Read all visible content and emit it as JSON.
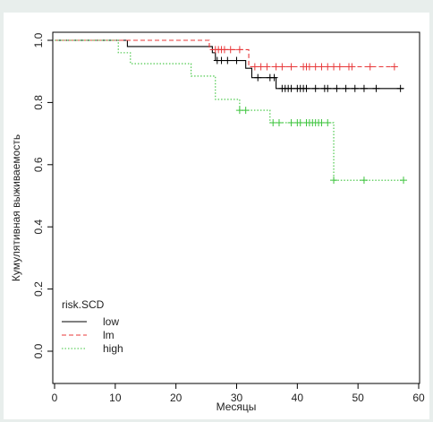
{
  "chart_data": {
    "type": "line",
    "subtype": "kaplan-meier step curves with censor marks",
    "xlabel": "Месяцы",
    "ylabel": "Кумулятивная выживаемость",
    "xlim": [
      0,
      60
    ],
    "ylim": [
      0,
      1
    ],
    "x_ticks": [
      "0",
      "10",
      "20",
      "30",
      "40",
      "50",
      "60"
    ],
    "y_ticks": [
      "0.0",
      "0.2",
      "0.4",
      "0.6",
      "0.8",
      "1.0"
    ],
    "grid": false,
    "legend": {
      "title": "risk.SCD",
      "position": "bottom-left"
    },
    "series": [
      {
        "name": "low",
        "color": "#000000",
        "line_style": "solid",
        "steps": [
          [
            0,
            1.0
          ],
          [
            12,
            0.98
          ],
          [
            26,
            0.96
          ],
          [
            26.5,
            0.935
          ],
          [
            31.5,
            0.91
          ],
          [
            32.5,
            0.88
          ],
          [
            36.5,
            0.845
          ],
          [
            57.5,
            0.845
          ]
        ],
        "censored": [
          [
            26.8,
            0.935
          ],
          [
            27.5,
            0.935
          ],
          [
            28.5,
            0.935
          ],
          [
            30,
            0.935
          ],
          [
            33.5,
            0.88
          ],
          [
            35.5,
            0.88
          ],
          [
            36.2,
            0.88
          ],
          [
            37.5,
            0.845
          ],
          [
            38,
            0.845
          ],
          [
            38.5,
            0.845
          ],
          [
            39,
            0.845
          ],
          [
            40,
            0.845
          ],
          [
            40.5,
            0.845
          ],
          [
            41,
            0.845
          ],
          [
            41.5,
            0.845
          ],
          [
            43,
            0.845
          ],
          [
            44.5,
            0.845
          ],
          [
            45,
            0.845
          ],
          [
            46.5,
            0.845
          ],
          [
            48,
            0.845
          ],
          [
            49.5,
            0.845
          ],
          [
            51,
            0.845
          ],
          [
            53,
            0.845
          ],
          [
            57,
            0.845
          ]
        ]
      },
      {
        "name": "lm",
        "color": "#e8393a",
        "line_style": "dashed",
        "steps": [
          [
            0,
            1.0
          ],
          [
            25.5,
            0.97
          ],
          [
            32,
            0.915
          ],
          [
            56.5,
            0.915
          ]
        ],
        "censored": [
          [
            26.5,
            0.97
          ],
          [
            27,
            0.97
          ],
          [
            27.5,
            0.97
          ],
          [
            28,
            0.97
          ],
          [
            29,
            0.97
          ],
          [
            30.5,
            0.97
          ],
          [
            33,
            0.915
          ],
          [
            34,
            0.915
          ],
          [
            35,
            0.915
          ],
          [
            36.5,
            0.915
          ],
          [
            37.5,
            0.915
          ],
          [
            39,
            0.915
          ],
          [
            41,
            0.915
          ],
          [
            41.5,
            0.915
          ],
          [
            42,
            0.915
          ],
          [
            43,
            0.915
          ],
          [
            44,
            0.915
          ],
          [
            45,
            0.915
          ],
          [
            46,
            0.915
          ],
          [
            47,
            0.915
          ],
          [
            48.5,
            0.915
          ],
          [
            49,
            0.915
          ],
          [
            52,
            0.915
          ],
          [
            56,
            0.915
          ]
        ]
      },
      {
        "name": "high",
        "color": "#3cc43c",
        "line_style": "dotted",
        "steps": [
          [
            0,
            1.0
          ],
          [
            10.5,
            0.96
          ],
          [
            12.5,
            0.925
          ],
          [
            22.5,
            0.885
          ],
          [
            26.5,
            0.81
          ],
          [
            30.5,
            0.775
          ],
          [
            35.5,
            0.735
          ],
          [
            46,
            0.55
          ],
          [
            57.5,
            0.55
          ]
        ],
        "censored": [
          [
            30.5,
            0.775
          ],
          [
            31.5,
            0.775
          ],
          [
            36,
            0.735
          ],
          [
            37,
            0.735
          ],
          [
            39,
            0.735
          ],
          [
            40,
            0.735
          ],
          [
            40.5,
            0.735
          ],
          [
            41.5,
            0.735
          ],
          [
            42,
            0.735
          ],
          [
            42.5,
            0.735
          ],
          [
            43,
            0.735
          ],
          [
            43.5,
            0.735
          ],
          [
            44,
            0.735
          ],
          [
            45,
            0.735
          ],
          [
            46,
            0.55
          ],
          [
            51,
            0.55
          ],
          [
            57.5,
            0.55
          ]
        ]
      }
    ]
  }
}
